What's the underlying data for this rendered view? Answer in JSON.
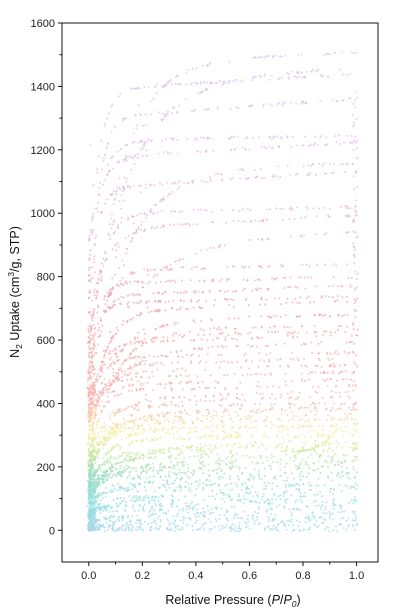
{
  "chart_data": {
    "type": "scatter",
    "x_ticks": [
      "0.0",
      "0.2",
      "0.4",
      "0.6",
      "0.8",
      "1.0"
    ],
    "y_ticks": [
      "0",
      "200",
      "400",
      "600",
      "800",
      "1000",
      "1200",
      "1400",
      "1600"
    ],
    "xlim": [
      -0.1,
      1.08
    ],
    "ylim": [
      -100,
      1600
    ],
    "grid": false,
    "legend": "none",
    "xlabel": {
      "pre": "Relative Pressure (",
      "p": "P",
      "slash": "/",
      "p0": "P",
      "sub": "0",
      "post": ")"
    },
    "ylabel": {
      "n": "N",
      "sub": "2",
      "mid": " Uptake (cm",
      "sup": "3",
      "post": "/g, STP)"
    },
    "color_stops": [
      {
        "y": 0,
        "color": "#a8d8ea"
      },
      {
        "y": 90,
        "color": "#92dfe0"
      },
      {
        "y": 180,
        "color": "#9edcbf"
      },
      {
        "y": 250,
        "color": "#cfe89a"
      },
      {
        "y": 310,
        "color": "#f7ec9c"
      },
      {
        "y": 400,
        "color": "#f6b3ad"
      },
      {
        "y": 700,
        "color": "#f2a0ab"
      },
      {
        "y": 900,
        "color": "#e7b5d6"
      },
      {
        "y": 1400,
        "color": "#d9c3e8"
      }
    ],
    "isotherm_plateaus": [
      0,
      5,
      12,
      20,
      28,
      36,
      45,
      55,
      65,
      75,
      85,
      95,
      105,
      115,
      125,
      135,
      145,
      155,
      165,
      175,
      185,
      195,
      205,
      215,
      225,
      235,
      245,
      255,
      265,
      275,
      285,
      295,
      305,
      315,
      325,
      335,
      345,
      355,
      365,
      375,
      390,
      405,
      420,
      440,
      460,
      480,
      500,
      520,
      545,
      570,
      590,
      610,
      630,
      660,
      690,
      715,
      740,
      780,
      820,
      900,
      950,
      1000,
      1080,
      1130,
      1175,
      1230,
      1300,
      1390,
      1420,
      1470
    ],
    "rising_curve": {
      "start_x": 0.78,
      "start_y": 250,
      "end_x": 1.0,
      "end_y": 410
    }
  }
}
